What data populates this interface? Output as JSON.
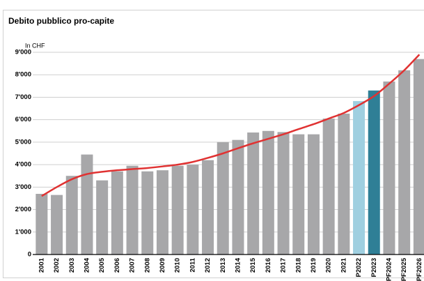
{
  "chart_data": {
    "type": "bar",
    "title": "Debito pubblico pro-capite",
    "y_label": "In CHF",
    "categories": [
      "2001",
      "2002",
      "2003",
      "2004",
      "2005",
      "2006",
      "2007",
      "2008",
      "2009",
      "2010",
      "2011",
      "2012",
      "2013",
      "2014",
      "2015",
      "2016",
      "2017",
      "2018",
      "2019",
      "2020",
      "2021",
      "P2022",
      "P2023",
      "PF2024",
      "PF2025",
      "PF2026"
    ],
    "values": [
      2700,
      2650,
      3500,
      4450,
      3300,
      3700,
      3950,
      3700,
      3750,
      3950,
      4000,
      4200,
      5000,
      5100,
      5430,
      5500,
      5450,
      5350,
      5350,
      6050,
      6270,
      6830,
      7300,
      7700,
      8200,
      8700
    ],
    "colors": [
      "#a7a7a9",
      "#a7a7a9",
      "#a7a7a9",
      "#a7a7a9",
      "#a7a7a9",
      "#a7a7a9",
      "#a7a7a9",
      "#a7a7a9",
      "#a7a7a9",
      "#a7a7a9",
      "#a7a7a9",
      "#a7a7a9",
      "#a7a7a9",
      "#a7a7a9",
      "#a7a7a9",
      "#a7a7a9",
      "#a7a7a9",
      "#a7a7a9",
      "#a7a7a9",
      "#a7a7a9",
      "#a7a7a9",
      "#9fcfe0",
      "#2f7f96",
      "#a7a7a9",
      "#a7a7a9",
      "#a7a7a9"
    ],
    "trend": {
      "type": "line",
      "color": "#e03232",
      "values": [
        2600,
        3000,
        3350,
        3580,
        3680,
        3750,
        3800,
        3850,
        3920,
        4000,
        4120,
        4300,
        4500,
        4730,
        4950,
        5150,
        5350,
        5580,
        5800,
        6050,
        6300,
        6650,
        7050,
        7600,
        8200,
        8900
      ]
    },
    "ylim": [
      0,
      9000
    ],
    "yticks": [
      0,
      {
        "value": 1000,
        "label": "1'000"
      },
      {
        "value": 2000,
        "label": "2'000"
      },
      {
        "value": 3000,
        "label": "3'000"
      },
      {
        "value": 4000,
        "label": "4'000"
      },
      {
        "value": 5000,
        "label": "5'000"
      },
      {
        "value": 6000,
        "label": "6'000"
      },
      {
        "value": 7000,
        "label": "7'000"
      },
      {
        "value": 8000,
        "label": "8'000"
      },
      {
        "value": 9000,
        "label": "9'000"
      }
    ],
    "grid": true
  }
}
